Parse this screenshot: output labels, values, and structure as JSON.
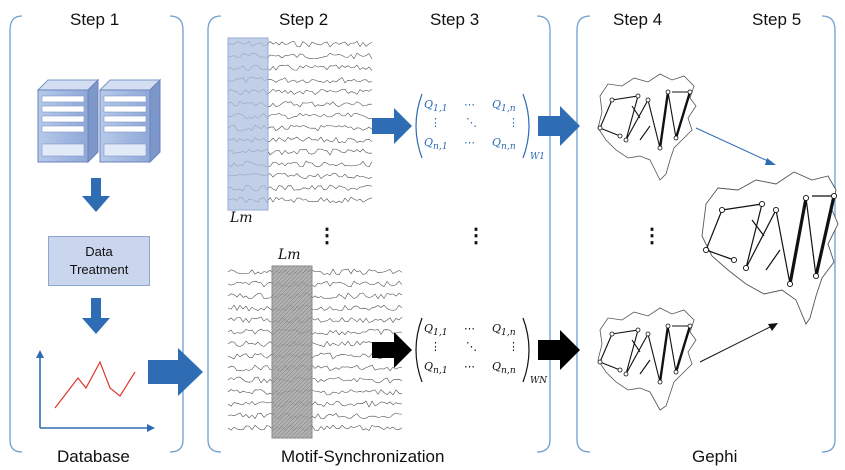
{
  "steps": {
    "step1": "Step 1",
    "step2": "Step 2",
    "step3": "Step 3",
    "step4": "Step 4",
    "step5": "Step 5"
  },
  "panels": {
    "database": "Database",
    "motif_sync": "Motif-Synchronization",
    "gephi": "Gephi"
  },
  "data_treatment": {
    "line1": "Data",
    "line2": "Treatment"
  },
  "lm_label": "Lm",
  "ellipsis": "⋮",
  "matrix": {
    "top_sub": "W1",
    "bottom_sub": "WN"
  },
  "colors": {
    "accent_blue": "#2e6db4",
    "panel_border": "#6f9fd0",
    "shade_blue": "#aebfe0",
    "shade_gray": "#9a9a9a",
    "black": "#000000"
  }
}
